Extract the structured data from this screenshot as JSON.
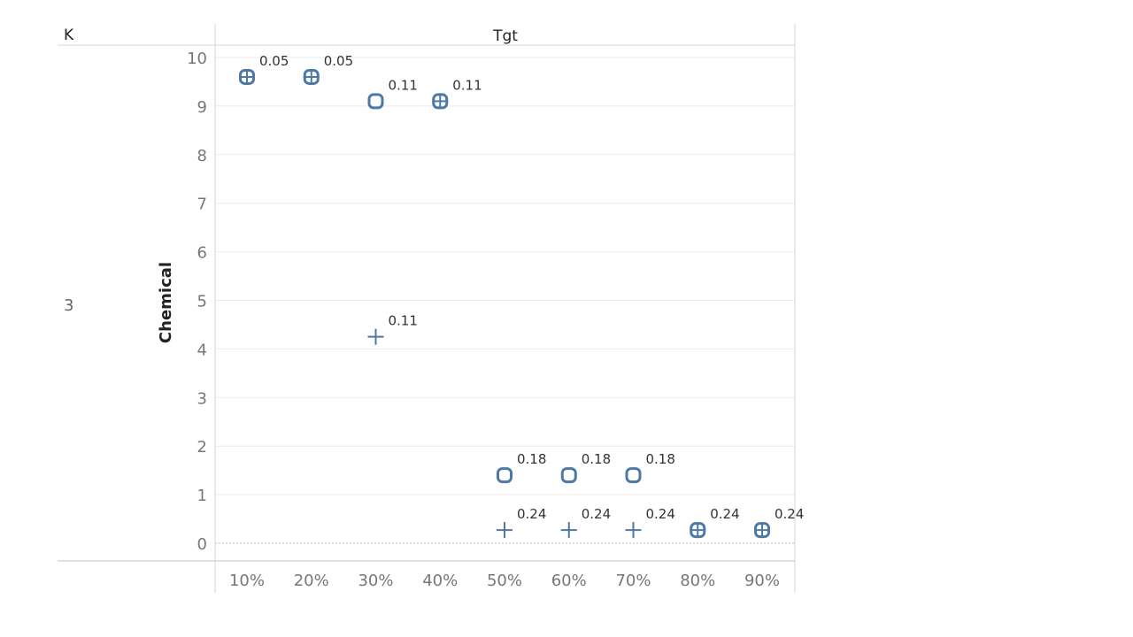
{
  "header": {
    "row_field": "K",
    "column_field": "Tgt"
  },
  "row_label": "3",
  "colors": {
    "mark": "#4e79a7",
    "grid": "#ebebeb",
    "frame": "#d4d4d4",
    "zero_line": "#bdbdbd"
  },
  "chart_data": {
    "type": "scatter",
    "title": "",
    "xlabel": "",
    "ylabel": "Chemical",
    "categories": [
      "10%",
      "20%",
      "30%",
      "40%",
      "50%",
      "60%",
      "70%",
      "80%",
      "90%"
    ],
    "ylim": [
      0,
      10
    ],
    "yticks": [
      0,
      1,
      2,
      3,
      4,
      5,
      6,
      7,
      8,
      9,
      10
    ],
    "grid": true,
    "legend": "none",
    "series": [
      {
        "marker": "circle",
        "points": [
          {
            "x": "10%",
            "y": 9.6
          },
          {
            "x": "20%",
            "y": 9.6
          },
          {
            "x": "30%",
            "y": 9.1
          },
          {
            "x": "40%",
            "y": 9.1
          },
          {
            "x": "50%",
            "y": 1.4
          },
          {
            "x": "60%",
            "y": 1.4
          },
          {
            "x": "70%",
            "y": 1.4
          },
          {
            "x": "80%",
            "y": 0.27
          },
          {
            "x": "90%",
            "y": 0.27
          }
        ]
      },
      {
        "marker": "plus",
        "points": [
          {
            "x": "10%",
            "y": 9.6
          },
          {
            "x": "20%",
            "y": 9.6
          },
          {
            "x": "30%",
            "y": 4.25
          },
          {
            "x": "40%",
            "y": 9.1
          },
          {
            "x": "50%",
            "y": 0.27
          },
          {
            "x": "60%",
            "y": 0.27
          },
          {
            "x": "70%",
            "y": 0.27
          },
          {
            "x": "80%",
            "y": 0.27
          },
          {
            "x": "90%",
            "y": 0.27
          }
        ]
      }
    ],
    "annotations": [
      {
        "x": "10%",
        "y": 9.6,
        "text": "0.05"
      },
      {
        "x": "20%",
        "y": 9.6,
        "text": "0.05"
      },
      {
        "x": "30%",
        "y": 9.1,
        "text": "0.11"
      },
      {
        "x": "40%",
        "y": 9.1,
        "text": "0.11"
      },
      {
        "x": "30%",
        "y": 4.25,
        "text": "0.11"
      },
      {
        "x": "50%",
        "y": 1.4,
        "text": "0.18"
      },
      {
        "x": "60%",
        "y": 1.4,
        "text": "0.18"
      },
      {
        "x": "70%",
        "y": 1.4,
        "text": "0.18"
      },
      {
        "x": "50%",
        "y": 0.27,
        "text": "0.24"
      },
      {
        "x": "60%",
        "y": 0.27,
        "text": "0.24"
      },
      {
        "x": "70%",
        "y": 0.27,
        "text": "0.24"
      },
      {
        "x": "80%",
        "y": 0.27,
        "text": "0.24"
      },
      {
        "x": "90%",
        "y": 0.27,
        "text": "0.24"
      }
    ]
  }
}
